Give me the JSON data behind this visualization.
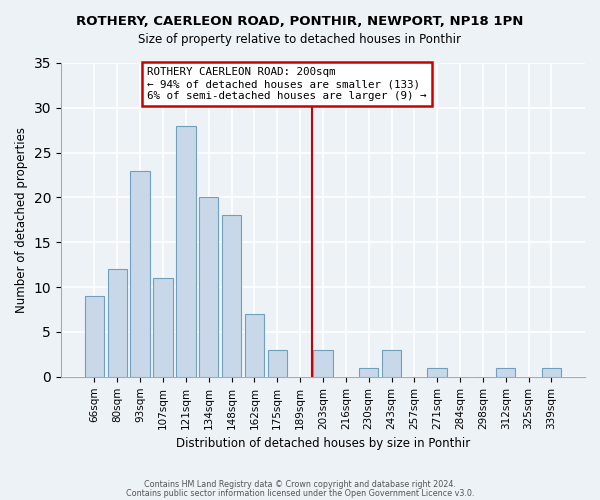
{
  "title": "ROTHERY, CAERLEON ROAD, PONTHIR, NEWPORT, NP18 1PN",
  "subtitle": "Size of property relative to detached houses in Ponthir",
  "xlabel": "Distribution of detached houses by size in Ponthir",
  "ylabel": "Number of detached properties",
  "bar_labels": [
    "66sqm",
    "80sqm",
    "93sqm",
    "107sqm",
    "121sqm",
    "134sqm",
    "148sqm",
    "162sqm",
    "175sqm",
    "189sqm",
    "203sqm",
    "216sqm",
    "230sqm",
    "243sqm",
    "257sqm",
    "271sqm",
    "284sqm",
    "298sqm",
    "312sqm",
    "325sqm",
    "339sqm"
  ],
  "bar_values": [
    9,
    12,
    23,
    11,
    28,
    20,
    18,
    7,
    3,
    0,
    3,
    0,
    1,
    3,
    0,
    1,
    0,
    0,
    1,
    0,
    1
  ],
  "bar_color": "#c8d8e8",
  "bar_edge_color": "#6fa0c0",
  "vline_color": "#cc0000",
  "annotation_title": "ROTHERY CAERLEON ROAD: 200sqm",
  "annotation_line1": "← 94% of detached houses are smaller (133)",
  "annotation_line2": "6% of semi-detached houses are larger (9) →",
  "annotation_box_edge": "#cc0000",
  "ylim": [
    0,
    35
  ],
  "yticks": [
    0,
    5,
    10,
    15,
    20,
    25,
    30,
    35
  ],
  "footnote1": "Contains HM Land Registry data © Crown copyright and database right 2024.",
  "footnote2": "Contains public sector information licensed under the Open Government Licence v3.0.",
  "background_color": "#edf2f7",
  "grid_color": "#ffffff"
}
